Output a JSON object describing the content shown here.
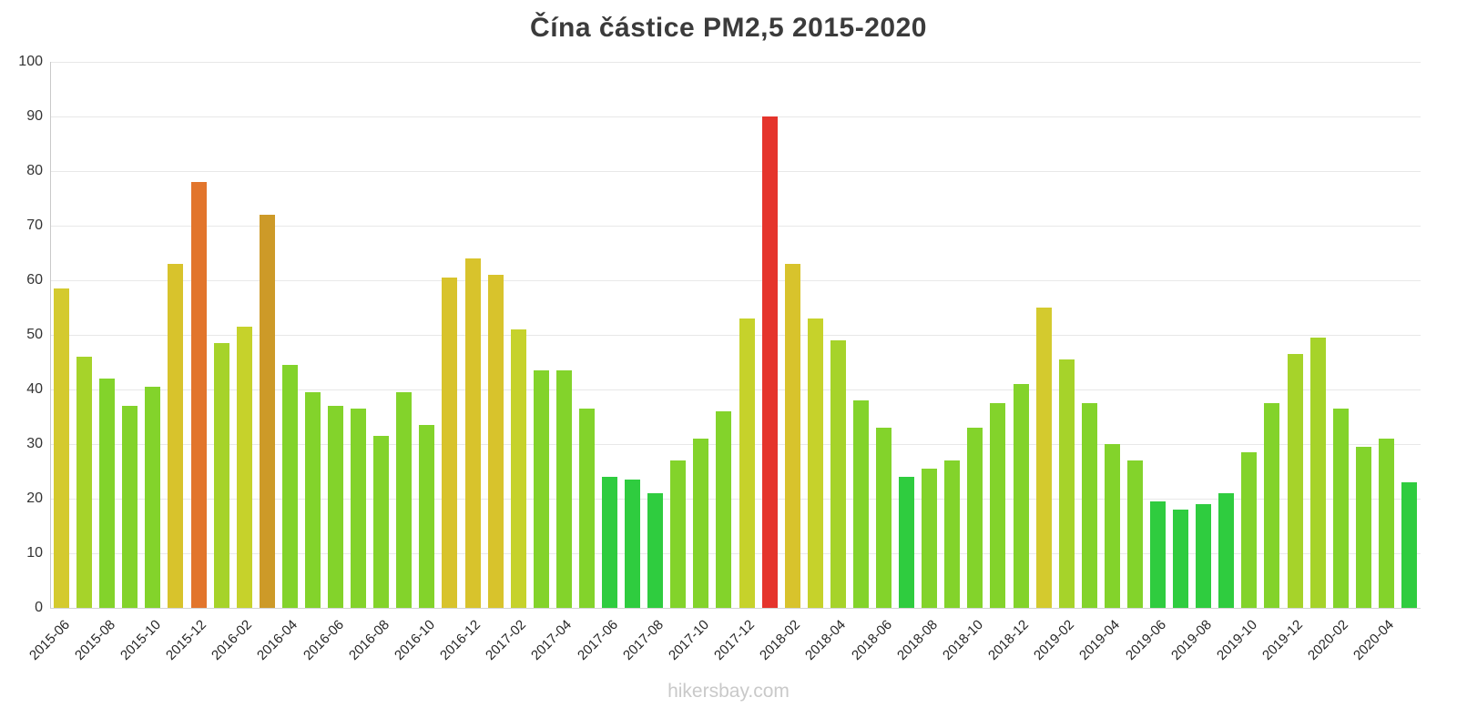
{
  "chart_data": {
    "type": "bar",
    "title": "Čína částice PM2,5 2015-2020",
    "xlabel": "",
    "ylabel": "",
    "ylim": [
      0,
      100
    ],
    "ytick_step": 10,
    "grid": "horizontal",
    "legend": "none",
    "x_label_every": 2,
    "categories": [
      "2015-06",
      "2015-07",
      "2015-08",
      "2015-09",
      "2015-10",
      "2015-11",
      "2015-12",
      "2016-01",
      "2016-02",
      "2016-03",
      "2016-04",
      "2016-05",
      "2016-06",
      "2016-07",
      "2016-08",
      "2016-09",
      "2016-10",
      "2016-11",
      "2016-12",
      "2017-01",
      "2017-02",
      "2017-03",
      "2017-04",
      "2017-05",
      "2017-06",
      "2017-07",
      "2017-08",
      "2017-09",
      "2017-10",
      "2017-11",
      "2017-12",
      "2018-01",
      "2018-02",
      "2018-03",
      "2018-04",
      "2018-05",
      "2018-06",
      "2018-07",
      "2018-08",
      "2018-09",
      "2018-10",
      "2018-11",
      "2018-12",
      "2019-01",
      "2019-02",
      "2019-03",
      "2019-04",
      "2019-05",
      "2019-06",
      "2019-07",
      "2019-08",
      "2019-09",
      "2019-10",
      "2019-11",
      "2019-12",
      "2020-01",
      "2020-02",
      "2020-03",
      "2020-04",
      "2020-05"
    ],
    "values": [
      58.5,
      46,
      42,
      37,
      40.5,
      63,
      78,
      48.5,
      51.5,
      72,
      44.5,
      39.5,
      37,
      36.5,
      31.5,
      39.5,
      33.5,
      60.5,
      64,
      61,
      51,
      43.5,
      43.5,
      36.5,
      24,
      23.5,
      21,
      27,
      31,
      36,
      53,
      90,
      63,
      53,
      49,
      38,
      33,
      24,
      25.5,
      27,
      33,
      37.5,
      41,
      55,
      45.5,
      37.5,
      30,
      27,
      19.5,
      18,
      19,
      21,
      28.5,
      37.5,
      46.5,
      49.5,
      36.5,
      29.5,
      31,
      23
    ],
    "color_scale": [
      {
        "lt": 25,
        "color": "#2fcc3f"
      },
      {
        "lt": 45,
        "color": "#83d32b"
      },
      {
        "lt": 50,
        "color": "#a6d32a"
      },
      {
        "lt": 55,
        "color": "#c6d22b"
      },
      {
        "lt": 60,
        "color": "#d4ca2e"
      },
      {
        "lt": 65,
        "color": "#d8c32c"
      },
      {
        "lt": 75,
        "color": "#cd9a28"
      },
      {
        "lt": 85,
        "color": "#e2752c"
      },
      {
        "lt": 1000,
        "color": "#e5342c"
      }
    ]
  },
  "footer": {
    "watermark": "hikersbay.com"
  }
}
